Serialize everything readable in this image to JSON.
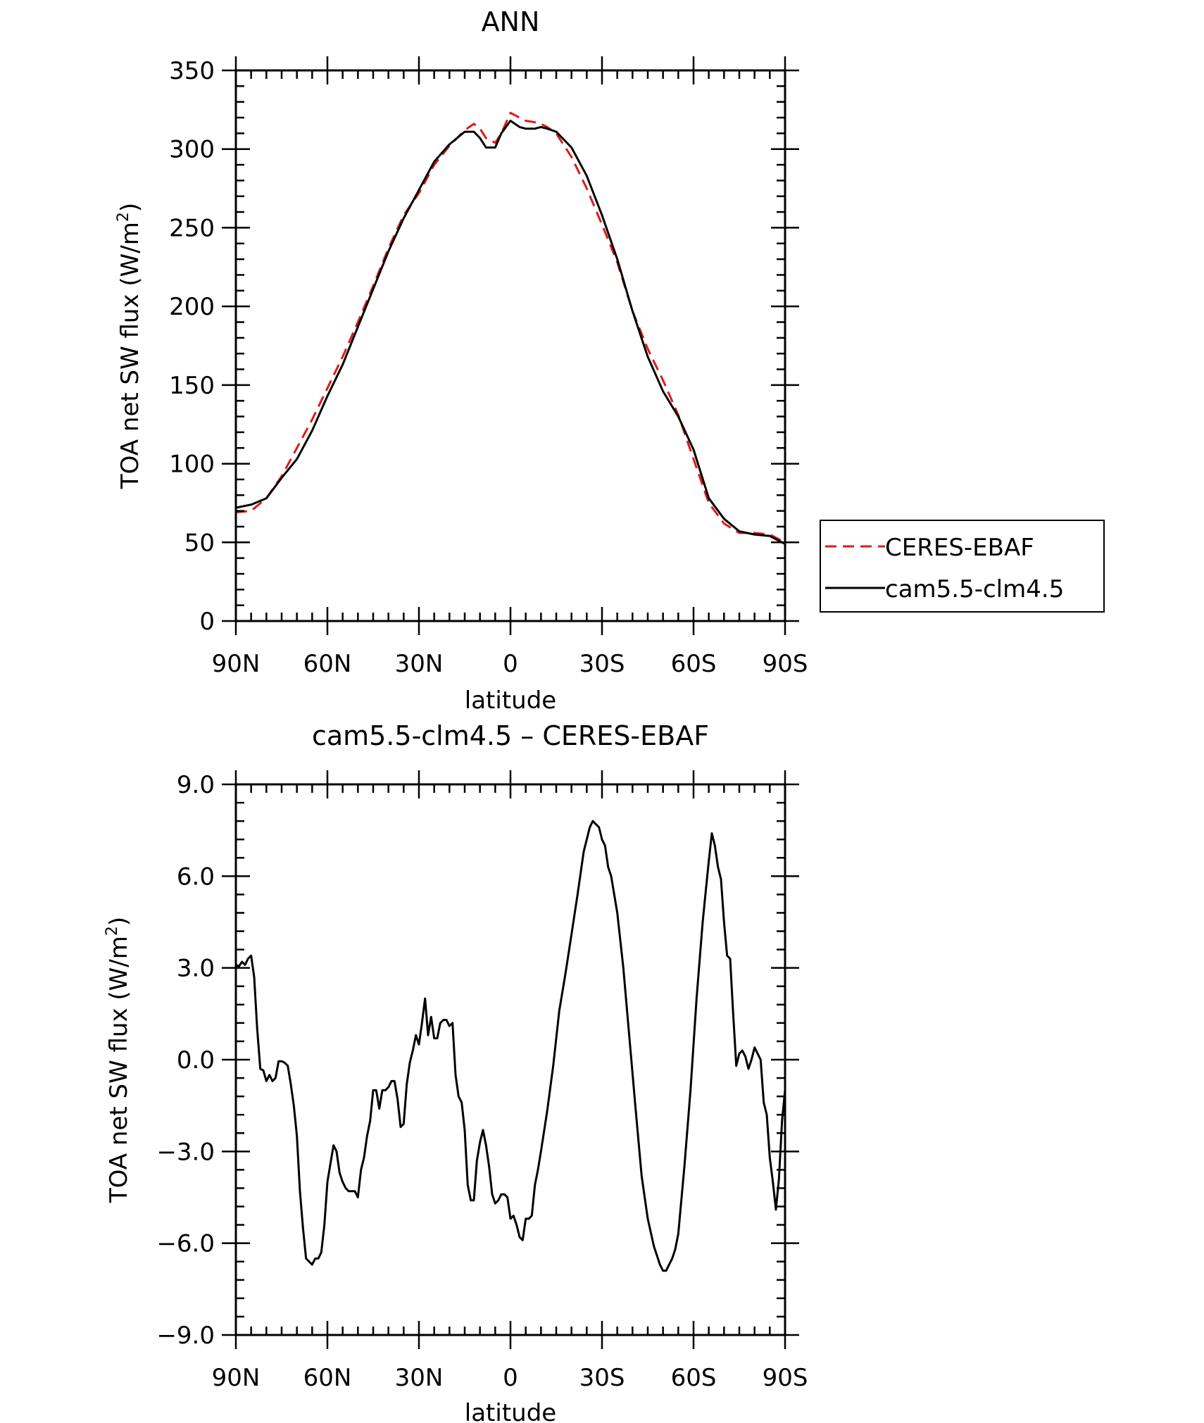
{
  "chart_data": [
    {
      "type": "line",
      "title": "ANN",
      "xlabel": "latitude",
      "ylabel_main": "TOA net SW flux (W/m",
      "ylabel_sup": "2",
      "ylabel_end": ")",
      "xlim": [
        90,
        -90
      ],
      "ylim": [
        0,
        350
      ],
      "yticks": [
        0,
        50,
        100,
        150,
        200,
        250,
        300,
        350
      ],
      "ytick_labels": [
        "0",
        "50",
        "100",
        "150",
        "200",
        "250",
        "300",
        "350"
      ],
      "xticks": [
        90,
        60,
        30,
        0,
        -30,
        -60,
        -90
      ],
      "xtick_labels": [
        "90N",
        "60N",
        "30N",
        "0",
        "30S",
        "60S",
        "90S"
      ],
      "grid": false,
      "legend_position": "right",
      "series": [
        {
          "name": "CERES-EBAF",
          "color": "#e0191b",
          "dash": "dashed",
          "x": [
            90,
            85,
            80,
            75,
            70,
            65,
            60,
            55,
            50,
            45,
            40,
            35,
            30,
            25,
            20,
            15,
            12,
            10,
            8,
            5,
            3,
            0,
            -3,
            -5,
            -8,
            -10,
            -12,
            -15,
            -20,
            -25,
            -30,
            -35,
            -40,
            -45,
            -50,
            -55,
            -60,
            -65,
            -70,
            -75,
            -80,
            -85,
            -90
          ],
          "y": [
            69,
            70,
            78,
            92,
            110,
            128,
            148,
            168,
            190,
            213,
            237,
            258,
            272,
            290,
            302,
            312,
            316,
            313,
            307,
            304,
            310,
            323,
            320,
            318,
            317,
            316,
            314,
            310,
            295,
            275,
            252,
            228,
            197,
            173,
            153,
            131,
            103,
            75,
            62,
            56,
            56,
            55,
            50
          ]
        },
        {
          "name": "cam5.5-clm4.5",
          "color": "#000000",
          "dash": "solid",
          "x": [
            90,
            85,
            80,
            75,
            70,
            65,
            60,
            55,
            50,
            45,
            40,
            35,
            30,
            25,
            20,
            15,
            12,
            10,
            8,
            5,
            3,
            0,
            -3,
            -5,
            -8,
            -10,
            -12,
            -15,
            -20,
            -25,
            -30,
            -35,
            -40,
            -45,
            -50,
            -55,
            -60,
            -65,
            -70,
            -75,
            -80,
            -85,
            -90
          ],
          "y": [
            72,
            74,
            78,
            91,
            103,
            121,
            143,
            163,
            187,
            211,
            235,
            256,
            274,
            292,
            303,
            311,
            311,
            307,
            301,
            301,
            310,
            318,
            314,
            313,
            313,
            314,
            313,
            311,
            301,
            283,
            258,
            230,
            197,
            168,
            146,
            130,
            109,
            78,
            65,
            57,
            55,
            54,
            49
          ]
        }
      ]
    },
    {
      "type": "line",
      "title": "cam5.5-clm4.5 – CERES-EBAF",
      "xlabel": "latitude",
      "ylabel_main": "TOA net SW flux (W/m",
      "ylabel_sup": "2",
      "ylabel_end": ")",
      "xlim": [
        90,
        -90
      ],
      "ylim": [
        -9,
        9
      ],
      "yticks": [
        -9,
        -6,
        -3,
        0,
        3,
        6,
        9
      ],
      "ytick_labels": [
        "−9.0",
        "−6.0",
        "−3.0",
        "0.0",
        "3.0",
        "6.0",
        "9.0"
      ],
      "xticks": [
        90,
        60,
        30,
        0,
        -30,
        -60,
        -90
      ],
      "xtick_labels": [
        "90N",
        "60N",
        "30N",
        "0",
        "30S",
        "60S",
        "90S"
      ],
      "grid": false,
      "series": [
        {
          "color": "#000000",
          "x": [
            90,
            89,
            88,
            87,
            86,
            85,
            84,
            83,
            82,
            81,
            80,
            79,
            78,
            77,
            76,
            75,
            74,
            73,
            72,
            71,
            70,
            69,
            68,
            67,
            66,
            65,
            64,
            63,
            62,
            61,
            60,
            59,
            58,
            57,
            56,
            55,
            54,
            53,
            52,
            51,
            50,
            49,
            48,
            47,
            46,
            45,
            44,
            43,
            42,
            41,
            40,
            39,
            38,
            37,
            36,
            35,
            34,
            33,
            32,
            31,
            30,
            29,
            28,
            27,
            26,
            25,
            24,
            23,
            22,
            21,
            20,
            19,
            18,
            17,
            16,
            15,
            14,
            13,
            12,
            11,
            10,
            9,
            8,
            7,
            6,
            5,
            4,
            3,
            2,
            1,
            0,
            -1,
            -2,
            -3,
            -4,
            -5,
            -6,
            -7,
            -8,
            -9,
            -10,
            -12,
            -14,
            -16,
            -18,
            -20,
            -22,
            -24,
            -26,
            -27,
            -28,
            -29,
            -30,
            -31,
            -32,
            -33,
            -35,
            -37,
            -39,
            -41,
            -43,
            -45,
            -47,
            -49,
            -50,
            -51,
            -52,
            -53,
            -54,
            -55,
            -57,
            -59,
            -61,
            -63,
            -64,
            -65,
            -66,
            -67,
            -68,
            -69,
            -70,
            -71,
            -72,
            -73,
            -74,
            -75,
            -76,
            -77,
            -78,
            -79,
            -80,
            -81,
            -82,
            -83,
            -84,
            -85,
            -86,
            -87,
            -88,
            -89,
            -90
          ],
          "y": [
            3.1,
            3.05,
            3.2,
            3.1,
            3.3,
            3.4,
            2.7,
            1.0,
            -0.3,
            -0.35,
            -0.7,
            -0.5,
            -0.7,
            -0.6,
            -0.05,
            -0.05,
            -0.1,
            -0.2,
            -0.8,
            -1.5,
            -2.5,
            -4.3,
            -5.5,
            -6.5,
            -6.6,
            -6.7,
            -6.5,
            -6.5,
            -6.3,
            -5.4,
            -4.0,
            -3.4,
            -2.8,
            -3.0,
            -3.7,
            -4.0,
            -4.2,
            -4.3,
            -4.3,
            -4.3,
            -4.5,
            -3.6,
            -3.2,
            -2.5,
            -2.0,
            -1.0,
            -1.0,
            -1.6,
            -1.0,
            -1.0,
            -0.9,
            -0.7,
            -0.7,
            -1.3,
            -2.2,
            -2.1,
            -0.8,
            -0.1,
            0.3,
            0.8,
            0.5,
            1.2,
            2.0,
            0.8,
            1.4,
            0.7,
            0.7,
            1.2,
            1.3,
            1.3,
            1.1,
            1.2,
            -0.5,
            -1.2,
            -1.4,
            -2.3,
            -4.1,
            -4.6,
            -4.6,
            -3.3,
            -2.7,
            -2.3,
            -2.8,
            -3.5,
            -4.4,
            -4.7,
            -4.6,
            -4.4,
            -4.4,
            -4.5,
            -5.2,
            -5.1,
            -5.4,
            -5.8,
            -5.9,
            -5.2,
            -5.2,
            -5.1,
            -4.1,
            -3.6,
            -3.0,
            -1.7,
            -0.2,
            1.6,
            2.8,
            4.1,
            5.4,
            6.8,
            7.6,
            7.8,
            7.7,
            7.6,
            7.2,
            7.0,
            6.3,
            6.0,
            4.8,
            3.0,
            0.7,
            -1.6,
            -3.8,
            -5.2,
            -6.1,
            -6.7,
            -6.9,
            -6.9,
            -6.7,
            -6.5,
            -6.2,
            -5.7,
            -3.5,
            -1.0,
            2.0,
            4.5,
            5.5,
            6.5,
            7.4,
            7.0,
            6.3,
            5.9,
            4.5,
            3.4,
            3.3,
            1.5,
            -0.2,
            0.2,
            0.3,
            0.1,
            -0.3,
            0.0,
            0.4,
            0.2,
            0.0,
            -1.4,
            -1.8,
            -3.2,
            -4.0,
            -4.9,
            -3.9,
            -2.0,
            -1.0
          ]
        }
      ]
    }
  ]
}
